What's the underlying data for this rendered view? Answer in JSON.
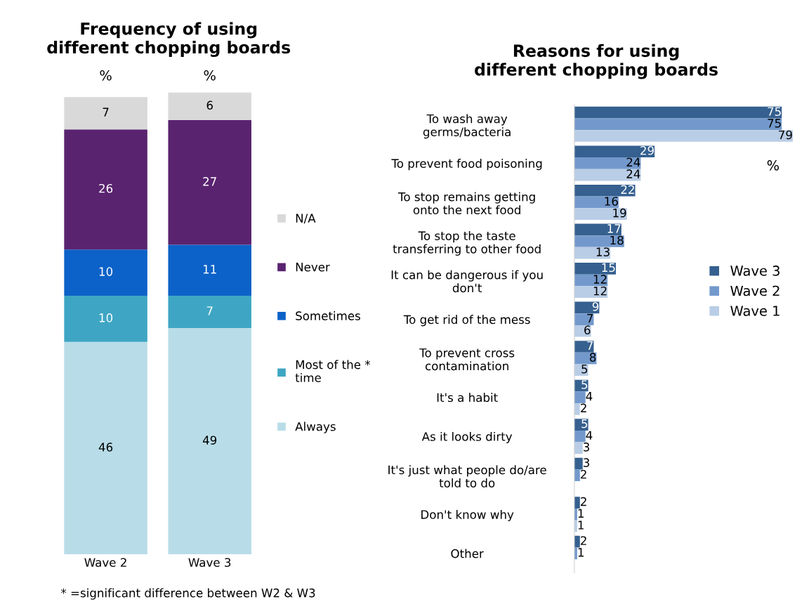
{
  "chart_data": [
    {
      "type": "bar",
      "title": "Frequency of using\ndifferent chopping boards",
      "stacked": true,
      "data_labels": true,
      "legend": "right",
      "categories": [
        "Wave 2",
        "Wave 3"
      ],
      "series": [
        {
          "name": "Always",
          "color": "#b8dde8",
          "values": [
            46,
            49
          ]
        },
        {
          "name": "Most of the *\ntime",
          "color": "#3ea6c4",
          "values": [
            10,
            7
          ]
        },
        {
          "name": "Sometimes",
          "color": "#0c62c8",
          "values": [
            10,
            11
          ]
        },
        {
          "name": "Never",
          "color": "#5a2370",
          "values": [
            26,
            27
          ]
        },
        {
          "name": "N/A",
          "color": "#d9d9d9",
          "values": [
            7,
            6
          ]
        }
      ],
      "annotations": [
        "%",
        "%",
        "* =significant difference between W2 & W3"
      ]
    },
    {
      "type": "bar",
      "orientation": "horizontal",
      "title": "Reasons for using\ndifferent chopping boards",
      "data_labels": true,
      "legend": "right",
      "categories": [
        "To wash away\ngerms/bacteria",
        "To prevent food poisoning",
        "To stop remains getting\nonto the next food",
        "To stop the taste\ntransferring to other food",
        "It can be dangerous if you\ndon't",
        "To get rid of the mess",
        "To prevent cross\ncontamination",
        "It's a habit",
        "As it looks dirty",
        "It's just what people do/are\ntold to do",
        "Don't know why",
        "Other"
      ],
      "series": [
        {
          "name": "Wave 3",
          "color": "#35608f",
          "values": [
            75,
            29,
            22,
            17,
            15,
            9,
            7,
            5,
            5,
            3,
            2,
            2
          ]
        },
        {
          "name": "Wave 2",
          "color": "#7399cc",
          "values": [
            75,
            24,
            16,
            18,
            12,
            7,
            8,
            4,
            4,
            2,
            1,
            1
          ]
        },
        {
          "name": "Wave 1",
          "color": "#b9cde6",
          "values": [
            79,
            24,
            19,
            13,
            12,
            6,
            5,
            2,
            3,
            null,
            1,
            null
          ]
        }
      ],
      "annotations": [
        "%"
      ]
    }
  ]
}
